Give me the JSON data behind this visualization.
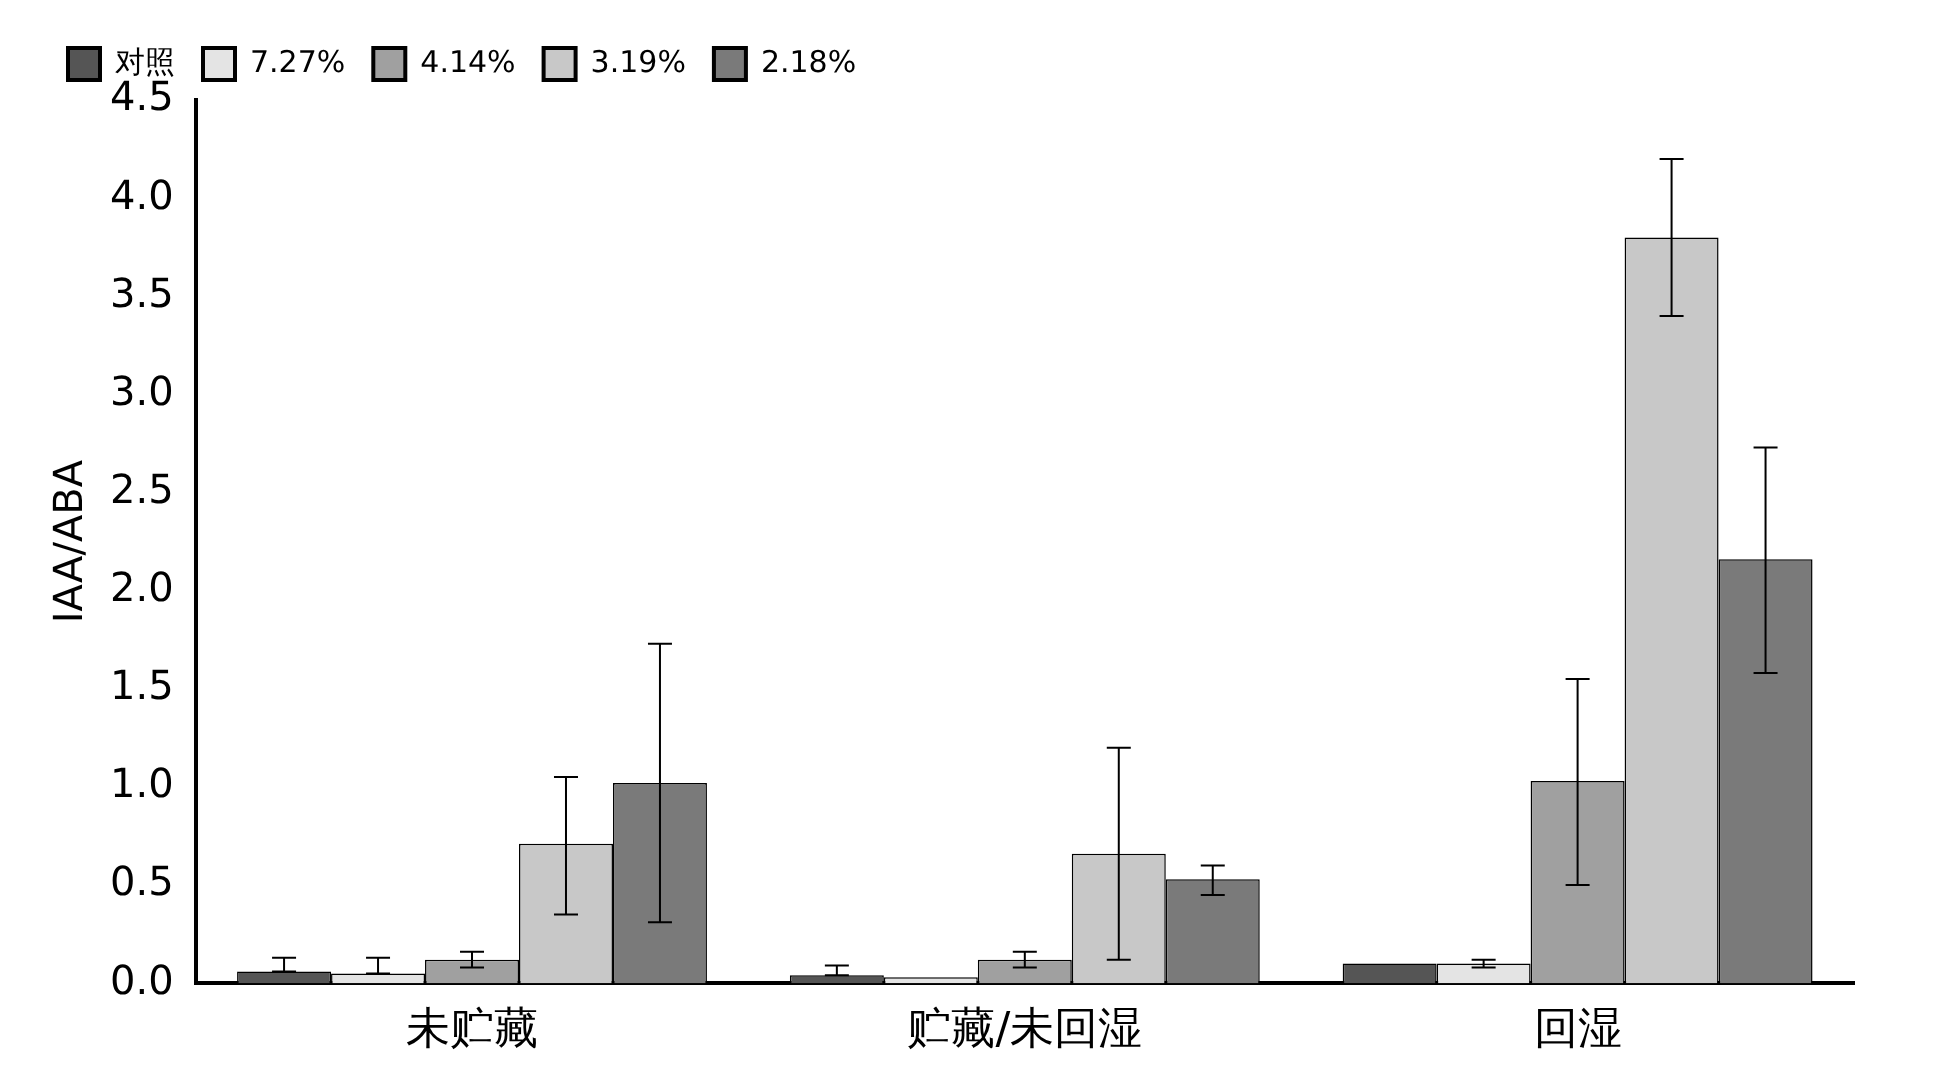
{
  "chart_data": {
    "type": "bar",
    "ylabel": "IAA/ABA",
    "categories": [
      "未贮藏",
      "贮藏/未回湿",
      "回湿"
    ],
    "series": [
      {
        "name": "对照",
        "color": "#555555",
        "values": [
          0.06,
          0.04,
          0.1
        ],
        "errors": [
          [
            0.06,
            0.13
          ],
          [
            0.04,
            0.09
          ],
          null
        ]
      },
      {
        "name": "7.27%",
        "color": "#e4e4e4",
        "values": [
          0.05,
          0.03,
          0.1
        ],
        "errors": [
          [
            0.05,
            0.13
          ],
          null,
          [
            0.08,
            0.12
          ]
        ]
      },
      {
        "name": "4.14%",
        "color": "#a0a0a0",
        "values": [
          0.12,
          0.12,
          1.03
        ],
        "errors": [
          [
            0.08,
            0.16
          ],
          [
            0.08,
            0.16
          ],
          [
            0.5,
            1.55
          ]
        ]
      },
      {
        "name": "3.19%",
        "color": "#c8c8c8",
        "values": [
          0.71,
          0.66,
          3.8
        ],
        "errors": [
          [
            0.35,
            1.05
          ],
          [
            0.12,
            1.2
          ],
          [
            3.4,
            4.2
          ]
        ]
      },
      {
        "name": "2.18%",
        "color": "#7a7a7a",
        "values": [
          1.02,
          0.53,
          2.16
        ],
        "errors": [
          [
            0.31,
            1.73
          ],
          [
            0.45,
            0.6
          ],
          [
            1.58,
            2.73
          ]
        ]
      }
    ],
    "ylim": [
      0,
      4.5
    ],
    "yticks": [
      {
        "value": 0,
        "label": "0.0"
      },
      {
        "value": 0.5,
        "label": "0.5"
      },
      {
        "value": 1,
        "label": "1.0"
      },
      {
        "value": 1.5,
        "label": "1.5"
      },
      {
        "value": 2,
        "label": "2.0"
      },
      {
        "value": 2.5,
        "label": "2.5"
      },
      {
        "value": 3,
        "label": "3.0"
      },
      {
        "value": 3.5,
        "label": "3.5"
      },
      {
        "value": 4,
        "label": "4.0"
      },
      {
        "value": 4.5,
        "label": "4.5"
      }
    ],
    "grid": false,
    "legend": "top left"
  }
}
